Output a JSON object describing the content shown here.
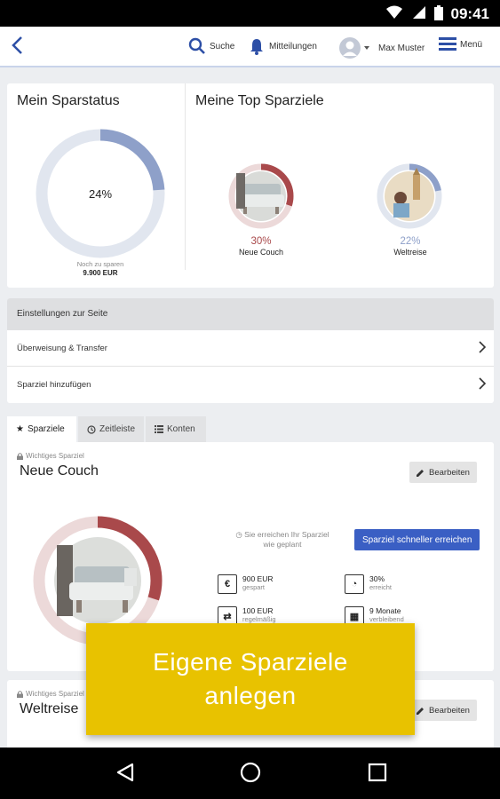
{
  "statusbar": {
    "time": "09:41"
  },
  "header": {
    "search_label": "Suche",
    "messages_label": "Mitteilungen",
    "user_label": "Max Muster",
    "menu_label": "Menü"
  },
  "sparstatus": {
    "title": "Mein Sparstatus",
    "percent_label": "24%",
    "progress": 0.24,
    "remaining_label": "Noch zu sparen",
    "remaining_value": "9.900 EUR"
  },
  "top_goals": {
    "title": "Meine Top Sparziele",
    "items": [
      {
        "percent": "30%",
        "progress": 0.3,
        "name": "Neue Couch",
        "color": "#a9494b"
      },
      {
        "percent": "22%",
        "progress": 0.22,
        "name": "Weltreise",
        "color": "#8ea0c9"
      }
    ]
  },
  "settings": {
    "heading": "Einstellungen zur Seite",
    "rows": [
      "Überweisung & Transfer",
      "Sparziel hinzufügen"
    ]
  },
  "tabs": [
    "Sparziele",
    "Zeitleiste",
    "Konten"
  ],
  "goal_couch": {
    "label": "Wichtiges Sparziel",
    "title": "Neue Couch",
    "edit_label": "Bearbeiten",
    "progress": 0.3,
    "plan_line1": "Sie erreichen Ihr Sparziel",
    "plan_line2": "wie geplant",
    "cta_label": "Sparziel schneller erreichen",
    "stats": [
      {
        "icon": "€",
        "value": "900 EUR",
        "sub": "gespart"
      },
      {
        "icon": "◔",
        "value": "30%",
        "sub": "erreicht"
      },
      {
        "icon": "⇄",
        "value": "100 EUR",
        "sub": "regelmäßig"
      },
      {
        "icon": "▦",
        "value": "9 Monate",
        "sub": "verbleibend"
      }
    ]
  },
  "goal_world": {
    "label": "Wichtiges Sparziel",
    "title": "Weltreise",
    "edit_label": "Bearbeiten"
  },
  "overlay": {
    "line1": "Eigene Sparziele",
    "line2": "anlegen"
  },
  "colors": {
    "accent": "#3a5fc4",
    "ring_blue": "#8ea0c9",
    "ring_red": "#a9494b",
    "overlay": "#e8c200"
  }
}
